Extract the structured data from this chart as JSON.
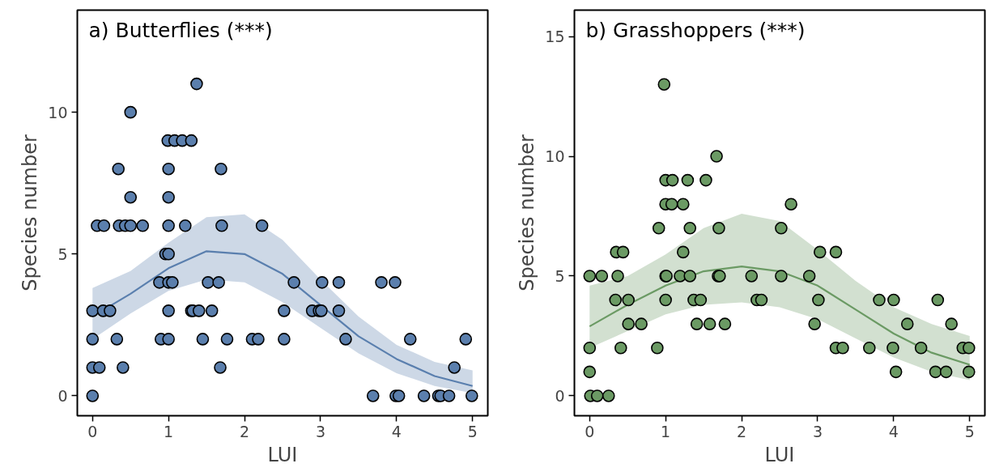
{
  "chart_data": [
    {
      "type": "scatter",
      "title": "a) Butterflies (***)",
      "xlabel": "LUI",
      "ylabel": "Species number",
      "xlim": [
        -0.2,
        5.2
      ],
      "ylim": [
        -0.7,
        13.6
      ],
      "xticks": [
        0,
        1,
        2,
        3,
        4,
        5
      ],
      "yticks": [
        0,
        5,
        10
      ],
      "grid": false,
      "marker": "circle",
      "series": [
        {
          "color": "#5b7fad",
          "x": [
            0,
            3.69,
            3.99,
            4.03,
            4.36,
            4.55,
            4.58,
            4.69,
            4.99,
            0,
            0.09,
            0.4,
            1.68,
            4.76,
            0,
            0.32,
            0.9,
            1.0,
            1.45,
            1.77,
            2.1,
            2.18,
            2.52,
            3.33,
            4.18,
            4.91,
            0,
            0.14,
            0.23,
            1.0,
            1.3,
            1.32,
            1.4,
            1.57,
            2.52,
            2.89,
            2.98,
            3.01,
            3.24,
            0.88,
            1.0,
            1.05,
            1.52,
            1.66,
            2.65,
            3.02,
            3.24,
            3.8,
            3.98,
            0.96,
            1.0,
            0.06,
            0.15,
            0.35,
            0.43,
            0.5,
            0.66,
            1.0,
            1.22,
            1.7,
            2.23,
            0.5,
            1.0,
            0.34,
            1.0,
            1.69,
            0.99,
            1.08,
            1.18,
            1.3,
            0.5,
            1.37
          ],
          "values": [
            0,
            0,
            0,
            0,
            0,
            0,
            0,
            0,
            0,
            1,
            1,
            1,
            1,
            1,
            2,
            2,
            2,
            2,
            2,
            2,
            2,
            2,
            2,
            2,
            2,
            2,
            3,
            3,
            3,
            3,
            3,
            3,
            3,
            3,
            3,
            3,
            3,
            3,
            3,
            4,
            4,
            4,
            4,
            4,
            4,
            4,
            4,
            4,
            4,
            5,
            5,
            6,
            6,
            6,
            6,
            6,
            6,
            6,
            6,
            6,
            6,
            7,
            7,
            8,
            8,
            8,
            9,
            9,
            9,
            9,
            10,
            11
          ]
        },
        {
          "type": "line",
          "marker": "none",
          "color": "#5a7fae",
          "x": [
            0,
            0.5,
            1,
            1.5,
            2,
            2.5,
            3,
            3.5,
            4,
            4.5,
            5
          ],
          "values": [
            2.8,
            3.6,
            4.5,
            5.1,
            5.0,
            4.3,
            3.2,
            2.1,
            1.3,
            0.7,
            0.35
          ],
          "lower": [
            2.0,
            2.9,
            3.7,
            4.1,
            4.0,
            3.3,
            2.4,
            1.5,
            0.8,
            0.35,
            0.1
          ],
          "upper": [
            3.8,
            4.4,
            5.4,
            6.3,
            6.4,
            5.5,
            4.1,
            2.8,
            1.8,
            1.2,
            0.9
          ]
        }
      ]
    },
    {
      "type": "scatter",
      "title": "b) Grasshoppers (***)",
      "xlabel": "LUI",
      "ylabel": "Species number",
      "xlim": [
        -0.2,
        5.2
      ],
      "ylim": [
        -0.83,
        16.1
      ],
      "xticks": [
        0,
        1,
        2,
        3,
        4,
        5
      ],
      "yticks": [
        0,
        5,
        10,
        15
      ],
      "grid": false,
      "marker": "circle",
      "series": [
        {
          "color": "#6b9a64",
          "x": [
            0.01,
            0.1,
            0.25,
            0,
            4.03,
            4.55,
            4.69,
            4.99,
            0,
            0.41,
            0.89,
            3.24,
            3.33,
            3.68,
            3.99,
            4.36,
            4.91,
            4.99,
            0.51,
            0.68,
            1.41,
            1.58,
            1.78,
            2.96,
            4.18,
            4.76,
            0.34,
            0.51,
            1.0,
            1.37,
            1.46,
            2.2,
            2.26,
            3.01,
            3.81,
            4.0,
            4.58,
            0,
            0.16,
            0.37,
            1.0,
            1.01,
            1.19,
            1.32,
            1.69,
            1.71,
            2.13,
            2.52,
            2.89,
            0.35,
            0.44,
            1.23,
            3.03,
            3.24,
            0.91,
            1.32,
            1.7,
            2.52,
            1.0,
            1.08,
            1.23,
            2.65,
            1.0,
            1.09,
            1.29,
            1.53,
            1.67,
            0.98
          ],
          "values": [
            0,
            0,
            0,
            1,
            1,
            1,
            1,
            1,
            2,
            2,
            2,
            2,
            2,
            2,
            2,
            2,
            2,
            2,
            3,
            3,
            3,
            3,
            3,
            3,
            3,
            3,
            4,
            4,
            4,
            4,
            4,
            4,
            4,
            4,
            4,
            4,
            4,
            5,
            5,
            5,
            5,
            5,
            5,
            5,
            5,
            5,
            5,
            5,
            5,
            6,
            6,
            6,
            6,
            6,
            7,
            7,
            7,
            7,
            8,
            8,
            8,
            8,
            9,
            9,
            9,
            9,
            10,
            13
          ]
        },
        {
          "type": "line",
          "marker": "none",
          "color": "#6b9a64",
          "x": [
            0,
            0.5,
            1,
            1.5,
            2,
            2.5,
            3,
            3.5,
            4,
            4.5,
            5
          ],
          "values": [
            2.9,
            3.8,
            4.6,
            5.2,
            5.4,
            5.2,
            4.6,
            3.6,
            2.6,
            1.8,
            1.3
          ],
          "lower": [
            2.0,
            2.7,
            3.4,
            3.8,
            3.9,
            3.7,
            3.2,
            2.4,
            1.6,
            1.0,
            0.66
          ],
          "upper": [
            4.6,
            5.0,
            5.9,
            7.0,
            7.6,
            7.3,
            6.1,
            4.8,
            3.7,
            3.0,
            2.5
          ]
        }
      ]
    }
  ]
}
